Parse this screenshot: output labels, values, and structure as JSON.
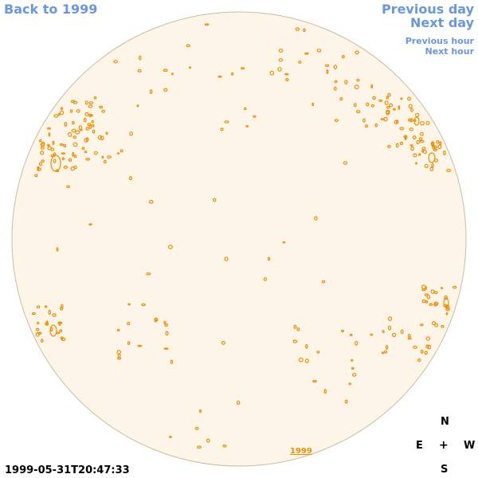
{
  "nav": {
    "back_label": "Back to 1999",
    "previous_day_label": "Previous day",
    "next_day_label": "Next day",
    "previous_hour_label": "Previous hour",
    "next_hour_label": "Next hour"
  },
  "compass": {
    "north": "N",
    "east": "E",
    "center": "+",
    "west": "W",
    "south": "S"
  },
  "timestamp": "1999-05-31T20:47:33",
  "year_link": "1999",
  "colors": {
    "link": "#6b96e0",
    "disk_fill": "#fdf6e8",
    "disk_border": "#c9bca0",
    "contour": "#f08c00"
  }
}
